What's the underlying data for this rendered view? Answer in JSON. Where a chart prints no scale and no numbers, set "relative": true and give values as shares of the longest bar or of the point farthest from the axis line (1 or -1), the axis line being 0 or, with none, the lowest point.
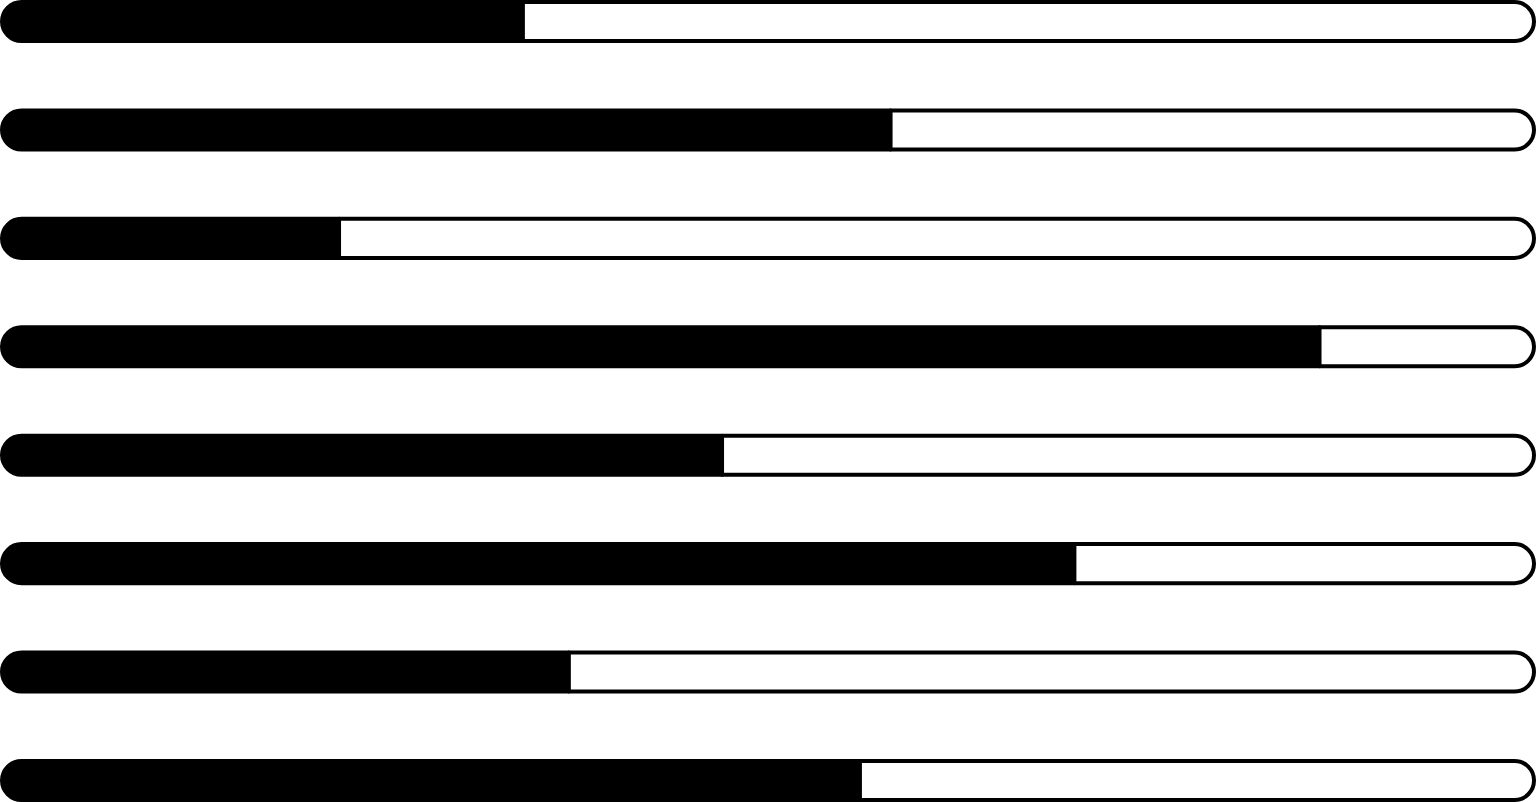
{
  "chart_data": {
    "type": "bar",
    "orientation": "horizontal",
    "stacked": true,
    "relative": true,
    "categories": [
      null,
      null,
      null,
      null,
      null,
      null,
      null,
      null
    ],
    "series": [
      {
        "color": "#000000",
        "values": [
          0.34,
          0.58,
          0.22,
          0.86,
          0.47,
          0.7,
          0.37,
          0.56
        ]
      },
      {
        "color": "#ffffff",
        "values": [
          0.66,
          0.42,
          0.78,
          0.14,
          0.53,
          0.3,
          0.63,
          0.44
        ]
      }
    ]
  }
}
